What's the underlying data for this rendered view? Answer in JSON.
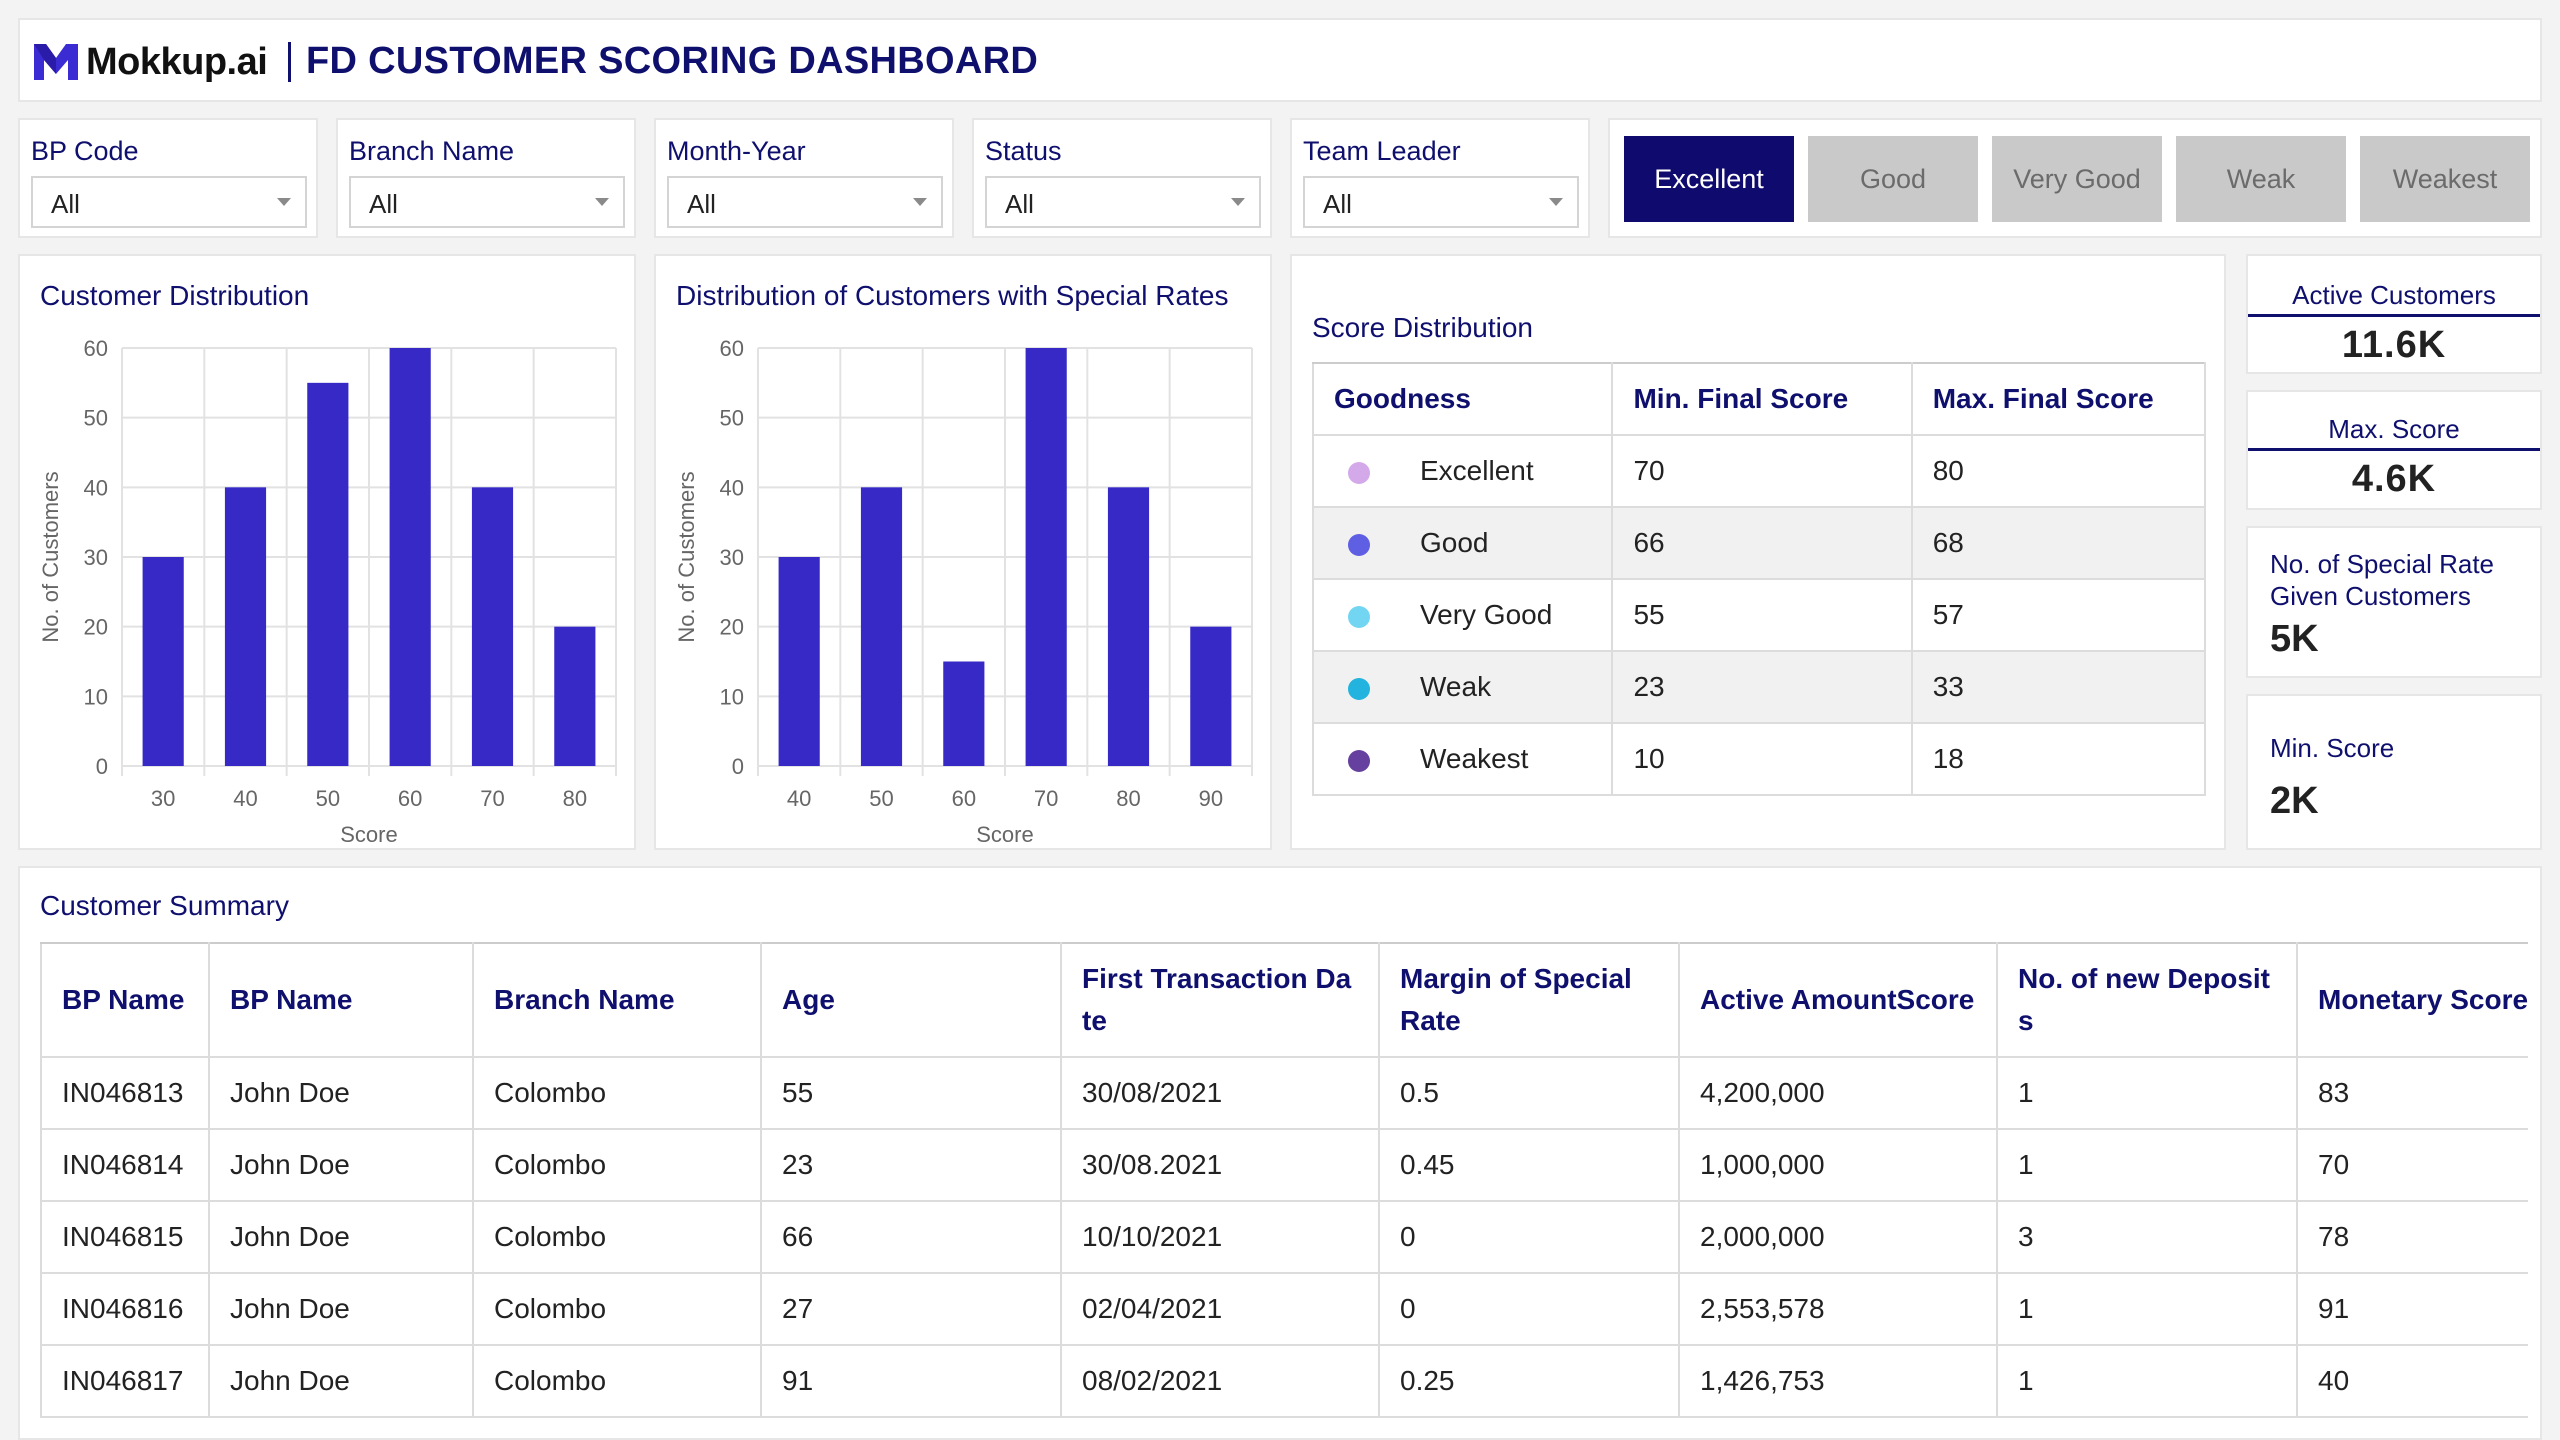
{
  "header": {
    "logo_text": "Mokkup.ai",
    "title": "FD CUSTOMER SCORING DASHBOARD"
  },
  "filters": [
    {
      "label": "BP Code",
      "value": "All"
    },
    {
      "label": "Branch Name",
      "value": "All"
    },
    {
      "label": "Month-Year",
      "value": "All"
    },
    {
      "label": "Status",
      "value": "All"
    },
    {
      "label": "Team Leader",
      "value": "All"
    }
  ],
  "tabs": [
    {
      "label": "Excellent",
      "active": true
    },
    {
      "label": "Good",
      "active": false
    },
    {
      "label": "Very Good",
      "active": false
    },
    {
      "label": "Weak",
      "active": false
    },
    {
      "label": "Weakest",
      "active": false
    }
  ],
  "colors": {
    "navy": "#0f0f6e",
    "bar": "#3629c6",
    "tab_active": "#0f0a6e",
    "tab_inactive": "#c9c9c9"
  },
  "chart_data": [
    {
      "type": "bar",
      "title": "Customer Distribution",
      "categories": [
        "30",
        "40",
        "50",
        "60",
        "70",
        "80"
      ],
      "values": [
        30,
        40,
        55,
        60,
        40,
        20
      ],
      "xlabel": "Score",
      "ylabel": "No. of Customers",
      "ylim": [
        0,
        60
      ],
      "yticks": [
        "0",
        "10",
        "20",
        "30",
        "40",
        "50",
        "60"
      ],
      "grid": true
    },
    {
      "type": "bar",
      "title": "Distribution of Customers with Special Rates",
      "categories": [
        "40",
        "50",
        "60",
        "70",
        "80",
        "90"
      ],
      "values": [
        30,
        40,
        15,
        60,
        40,
        20
      ],
      "xlabel": "Score",
      "ylabel": "No. of Customers",
      "ylim": [
        0,
        60
      ],
      "yticks": [
        "0",
        "10",
        "20",
        "30",
        "40",
        "50",
        "60"
      ],
      "grid": true
    }
  ],
  "score_distribution": {
    "title": "Score Distribution",
    "headers": [
      "Goodness",
      "Min. Final Score",
      "Max. Final Score"
    ],
    "rows": [
      {
        "goodness": "Excellent",
        "min": "70",
        "max": "80",
        "color": "#d4a9ea"
      },
      {
        "goodness": "Good",
        "min": "66",
        "max": "68",
        "color": "#5f5fe3"
      },
      {
        "goodness": "Very Good",
        "min": "55",
        "max": "57",
        "color": "#72d6f3"
      },
      {
        "goodness": "Weak",
        "min": "23",
        "max": "33",
        "color": "#22b3de"
      },
      {
        "goodness": "Weakest",
        "min": "10",
        "max": "18",
        "color": "#66409e"
      }
    ]
  },
  "kpis": {
    "active_customers": {
      "label": "Active Customers",
      "value": "11.6K"
    },
    "max_score": {
      "label": "Max. Score",
      "value": "4.6K"
    },
    "special_rate": {
      "label": "No. of Special Rate Given Customers",
      "value": "5K"
    },
    "min_score": {
      "label": "Min. Score",
      "value": "2K"
    }
  },
  "summary": {
    "title": "Customer Summary",
    "headers": [
      "BP Name",
      "BP Name",
      "Branch Name",
      "Age",
      "First Transaction Date",
      "Margin of Special Rate",
      "Active AmountScore",
      "No. of new Deposits",
      "Monetary Score"
    ],
    "rows": [
      [
        "IN046813",
        "John Doe",
        "Colombo",
        "55",
        "30/08/2021",
        "0.5",
        "4,200,000",
        "1",
        "83"
      ],
      [
        "IN046814",
        "John Doe",
        "Colombo",
        "23",
        "30/08.2021",
        "0.45",
        "1,000,000",
        "1",
        "70"
      ],
      [
        "IN046815",
        "John Doe",
        "Colombo",
        "66",
        "10/10/2021",
        "0",
        "2,000,000",
        "3",
        "78"
      ],
      [
        "IN046816",
        "John Doe",
        "Colombo",
        "27",
        "02/04/2021",
        "0",
        "2,553,578",
        "1",
        "91"
      ],
      [
        "IN046817",
        "John Doe",
        "Colombo",
        "91",
        "08/02/2021",
        "0.25",
        "1,426,753",
        "1",
        "40"
      ]
    ]
  }
}
